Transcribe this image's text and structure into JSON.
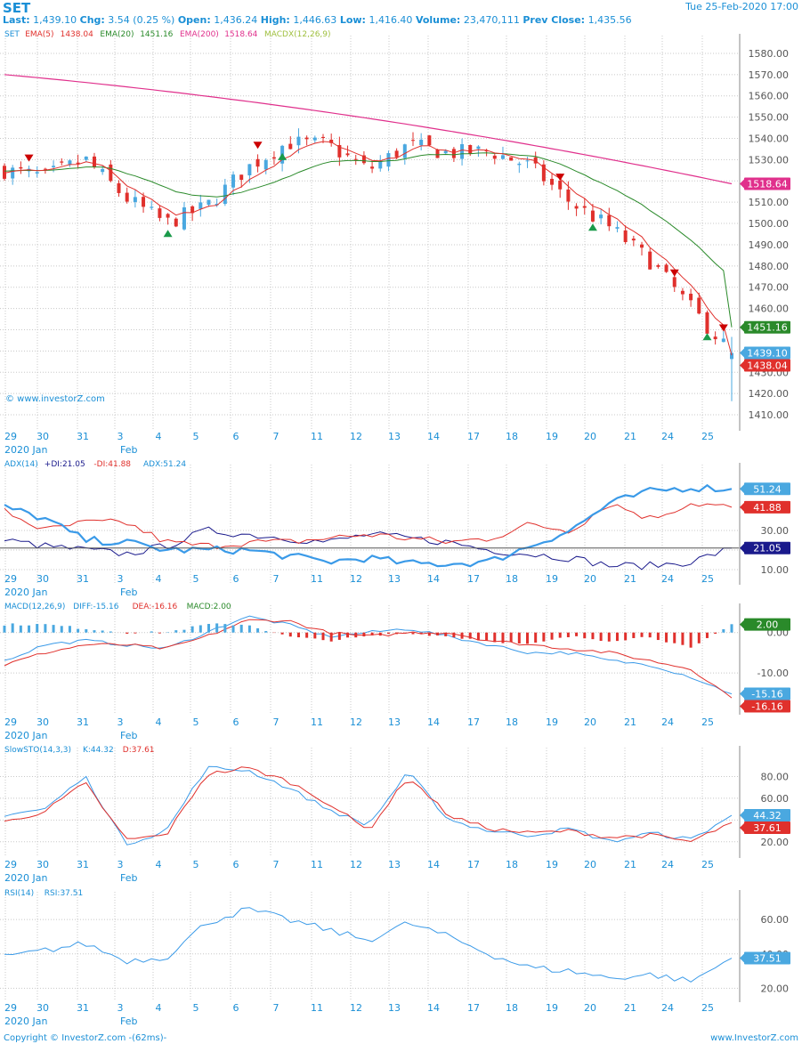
{
  "header": {
    "symbol": "SET",
    "datetime": "Tue 25-Feb-2020 17:00",
    "quote": [
      {
        "label": "Last:",
        "value": "1,439.10"
      },
      {
        "label": "Chg:",
        "value": "3.54 (0.25 %)"
      },
      {
        "label": "Open:",
        "value": "1,436.24"
      },
      {
        "label": "High:",
        "value": "1,446.63"
      },
      {
        "label": "Low:",
        "value": "1,416.40"
      },
      {
        "label": "Volume:",
        "value": "23,470,111"
      },
      {
        "label": "Prev Close:",
        "value": "1,435.56"
      }
    ]
  },
  "watermark": "© www.investorZ.com",
  "footer": {
    "left": "Copyright © InvestorZ.com  -(62ms)-",
    "right": "www.InvestorZ.com"
  },
  "colors": {
    "up": "#4aa8e0",
    "down": "#e0302c",
    "ema5": "#e0302c",
    "ema20": "#2a8a2a",
    "ema200": "#e0308c",
    "macdx": "#a0c040",
    "grid": "#c8c8c8",
    "label": "#1a8fd6"
  },
  "x_axis": {
    "day_labels": [
      "29",
      "30",
      "31",
      "3",
      "4",
      "5",
      "6",
      "7",
      "11",
      "12",
      "13",
      "14",
      "17",
      "18",
      "19",
      "20",
      "21",
      "24",
      "25"
    ],
    "row2_left": "2020 Jan",
    "row2_right": "Feb"
  },
  "panels": [
    {
      "id": "price",
      "legend": [
        {
          "text": "SET",
          "color": "#1a8fd6"
        },
        {
          "text": "EMA(5)",
          "color": "#e0302c"
        },
        {
          "text": "1438.04",
          "color": "#e0302c"
        },
        {
          "text": "EMA(20)",
          "color": "#2a8a2a"
        },
        {
          "text": "1451.16",
          "color": "#2a8a2a"
        },
        {
          "text": "EMA(200)",
          "color": "#e0308c"
        },
        {
          "text": "1518.64",
          "color": "#e0308c"
        },
        {
          "text": "MACDX(12,26,9)",
          "color": "#a0c040"
        }
      ],
      "ylim": [
        1405,
        1585
      ],
      "yticks": [
        "1410.00",
        "1420.00",
        "1430.00",
        "1440.00",
        "1450.00",
        "1460.00",
        "1470.00",
        "1480.00",
        "1490.00",
        "1500.00",
        "1510.00",
        "1520.00",
        "1530.00",
        "1540.00",
        "1550.00",
        "1560.00",
        "1570.00",
        "1580.00"
      ],
      "markers": [
        {
          "text": "1518.64",
          "value": 1518.64,
          "color": "#e0308c"
        },
        {
          "text": "1451.16",
          "value": 1451.16,
          "color": "#2a8a2a"
        },
        {
          "text": "1439.10",
          "value": 1439.1,
          "color": "#4aa8e0"
        },
        {
          "text": "1438.04",
          "value": 1438.04,
          "color": "#e0302c"
        }
      ]
    },
    {
      "id": "adx",
      "legend": [
        {
          "text": "ADX(14)",
          "color": "#1a8fd6"
        },
        {
          "text": "+DI:21.05",
          "color": "#1a1a8c"
        },
        {
          "text": "-DI:41.88",
          "color": "#e0302c"
        },
        {
          "text": "ADX:51.24",
          "color": "#1a8fd6"
        }
      ],
      "ylim": [
        5,
        60
      ],
      "yticks": [
        "10.00",
        "20.00",
        "30.00"
      ],
      "markers": [
        {
          "text": "51.24",
          "value": 51.24,
          "color": "#4aa8e0"
        },
        {
          "text": "41.88",
          "value": 41.88,
          "color": "#e0302c"
        },
        {
          "text": "21.05",
          "value": 21.05,
          "color": "#1a1a8c"
        }
      ]
    },
    {
      "id": "macd",
      "legend": [
        {
          "text": "MACD(12,26,9)",
          "color": "#1a8fd6"
        },
        {
          "text": "DIFF:-15.16",
          "color": "#1a8fd6"
        },
        {
          "text": "DEA:-16.16",
          "color": "#e0302c"
        },
        {
          "text": "MACD:2.00",
          "color": "#2a8a2a"
        }
      ],
      "ylim": [
        -19,
        5
      ],
      "yticks": [
        "0.00",
        "-10.00"
      ],
      "markers": [
        {
          "text": "2.00",
          "value": 2.0,
          "color": "#2a8a2a"
        },
        {
          "text": "-15.16",
          "value": -15.16,
          "color": "#4aa8e0"
        },
        {
          "text": "-16.16",
          "value": -16.16,
          "color": "#e0302c"
        }
      ]
    },
    {
      "id": "stoch",
      "legend": [
        {
          "text": "SlowSTO(14,3,3)",
          "color": "#1a8fd6"
        },
        {
          "text": "K:44.32",
          "color": "#1a8fd6"
        },
        {
          "text": "D:37.61",
          "color": "#e0302c"
        }
      ],
      "ylim": [
        10,
        100
      ],
      "yticks": [
        "20.00",
        "40.00",
        "60.00",
        "80.00"
      ],
      "markers": [
        {
          "text": "44.32",
          "value": 44.32,
          "color": "#4aa8e0"
        },
        {
          "text": "37.61",
          "value": 37.61,
          "color": "#e0302c"
        }
      ]
    },
    {
      "id": "rsi",
      "legend": [
        {
          "text": "RSI(14)",
          "color": "#1a8fd6"
        },
        {
          "text": "RSI:37.51",
          "color": "#1a8fd6"
        }
      ],
      "ylim": [
        15,
        72
      ],
      "yticks": [
        "20.00",
        "40.00",
        "60.00"
      ],
      "markers": [
        {
          "text": "37.51",
          "value": 37.51,
          "color": "#4aa8e0"
        }
      ]
    }
  ],
  "chart_data": [
    {
      "type": "candlestick",
      "title": "SET",
      "x": [
        "29",
        "30",
        "31",
        "3",
        "4",
        "5",
        "6",
        "7",
        "11",
        "12",
        "13",
        "14",
        "17",
        "18",
        "19",
        "20",
        "21",
        "24",
        "25"
      ],
      "close": [
        1525,
        1522,
        1530,
        1512,
        1500,
        1508,
        1526,
        1538,
        1537,
        1525,
        1537,
        1533,
        1534,
        1527,
        1510,
        1498,
        1482,
        1460,
        1439.1
      ],
      "last": {
        "open": 1436.24,
        "high": 1446.63,
        "low": 1416.4,
        "close": 1439.1
      },
      "series": [
        {
          "name": "EMA(5)",
          "last": 1438.04
        },
        {
          "name": "EMA(20)",
          "last": 1451.16
        },
        {
          "name": "EMA(200)",
          "last": 1518.64
        }
      ],
      "ylim": [
        1405,
        1585
      ]
    },
    {
      "type": "line",
      "title": "ADX(14)",
      "x": [
        "29",
        "30",
        "31",
        "3",
        "4",
        "5",
        "6",
        "7",
        "11",
        "12",
        "13",
        "14",
        "17",
        "18",
        "19",
        "20",
        "21",
        "24",
        "25"
      ],
      "series": [
        {
          "name": "+DI",
          "values": [
            25,
            22,
            20,
            18,
            22,
            30,
            28,
            26,
            24,
            28,
            26,
            24,
            20,
            18,
            16,
            12,
            12,
            14,
            21.05
          ]
        },
        {
          "name": "-DI",
          "values": [
            40,
            30,
            34,
            34,
            24,
            22,
            24,
            24,
            26,
            28,
            26,
            24,
            26,
            33,
            30,
            44,
            36,
            44,
            41.88
          ]
        },
        {
          "name": "ADX",
          "values": [
            42,
            36,
            25,
            24,
            20,
            20,
            20,
            17,
            14,
            16,
            13,
            13,
            14,
            22,
            30,
            44,
            50,
            52,
            51.24
          ]
        }
      ],
      "ylim": [
        5,
        60
      ]
    },
    {
      "type": "line",
      "title": "MACD(12,26,9)",
      "x": [
        "29",
        "30",
        "31",
        "3",
        "4",
        "5",
        "6",
        "7",
        "11",
        "12",
        "13",
        "14",
        "17",
        "18",
        "19",
        "20",
        "21",
        "24",
        "25"
      ],
      "series": [
        {
          "name": "DIFF",
          "values": [
            -7,
            -3,
            -2,
            -3,
            -4,
            0,
            4,
            2,
            -1,
            0,
            1,
            -1,
            -3,
            -5,
            -5,
            -7,
            -8,
            -11,
            -15.16
          ]
        },
        {
          "name": "DEA",
          "values": [
            -8,
            -5,
            -3,
            -3,
            -4,
            -1,
            3,
            3,
            0,
            -1,
            0,
            0,
            -2,
            -3,
            -4,
            -5,
            -7,
            -9,
            -16.16
          ]
        },
        {
          "name": "MACD",
          "values": [
            2,
            2,
            1,
            0,
            0,
            2,
            2,
            -1,
            -2,
            -1,
            0,
            -1,
            -2,
            -3,
            -1,
            -2,
            -1,
            -4,
            2.0
          ]
        }
      ],
      "ylim": [
        -19,
        5
      ]
    },
    {
      "type": "line",
      "title": "SlowSTO(14,3,3)",
      "x": [
        "29",
        "30",
        "31",
        "3",
        "4",
        "5",
        "6",
        "7",
        "11",
        "12",
        "13",
        "14",
        "17",
        "18",
        "19",
        "20",
        "21",
        "24",
        "25"
      ],
      "series": [
        {
          "name": "K",
          "values": [
            45,
            50,
            80,
            18,
            30,
            88,
            86,
            70,
            50,
            35,
            84,
            40,
            30,
            26,
            32,
            20,
            28,
            22,
            44.32
          ]
        },
        {
          "name": "D",
          "values": [
            38,
            48,
            74,
            22,
            26,
            82,
            88,
            76,
            56,
            30,
            80,
            44,
            32,
            28,
            30,
            24,
            26,
            20,
            37.61
          ]
        }
      ],
      "ylim": [
        10,
        100
      ]
    },
    {
      "type": "line",
      "title": "RSI(14)",
      "x": [
        "29",
        "30",
        "31",
        "3",
        "4",
        "5",
        "6",
        "7",
        "11",
        "12",
        "13",
        "14",
        "17",
        "18",
        "19",
        "20",
        "21",
        "24",
        "25"
      ],
      "series": [
        {
          "name": "RSI",
          "values": [
            38,
            42,
            46,
            36,
            38,
            58,
            66,
            60,
            54,
            48,
            58,
            50,
            40,
            32,
            30,
            26,
            28,
            24,
            37.51
          ]
        }
      ],
      "ylim": [
        15,
        72
      ]
    }
  ]
}
